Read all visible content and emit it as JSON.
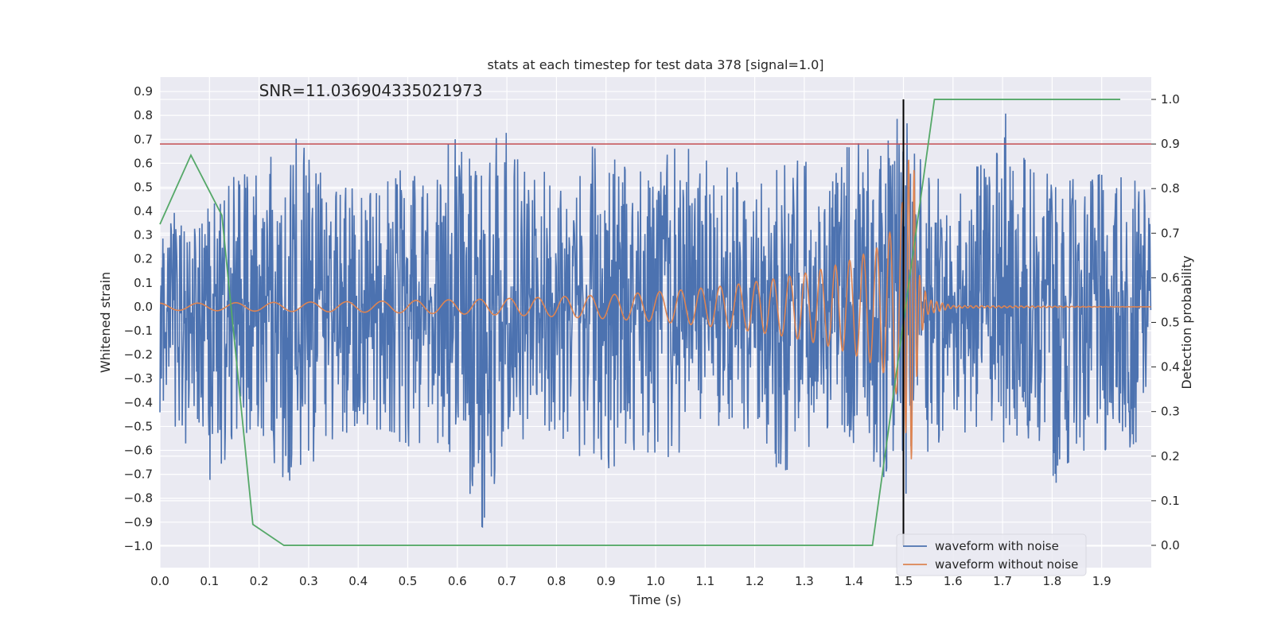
{
  "chart_data": {
    "type": "line",
    "title": "stats at each timestep for test data 378 [signal=1.0]",
    "annotation": "SNR=11.036904335021973",
    "xlabel": "Time (s)",
    "ylabel_left": "Whitened strain",
    "ylabel_right": "Detection probability",
    "xlim": [
      0.0,
      2.0
    ],
    "ylim_left": [
      -1.09,
      0.96
    ],
    "ylim_right": [
      -0.05,
      1.05
    ],
    "xticks": [
      "0.0",
      "0.1",
      "0.2",
      "0.3",
      "0.4",
      "0.5",
      "0.6",
      "0.7",
      "0.8",
      "0.9",
      "1.0",
      "1.1",
      "1.2",
      "1.3",
      "1.4",
      "1.5",
      "1.6",
      "1.7",
      "1.8",
      "1.9"
    ],
    "yticks_left": [
      "0.9",
      "0.8",
      "0.7",
      "0.6",
      "0.5",
      "0.4",
      "0.3",
      "0.2",
      "0.1",
      "0.0",
      "−0.1",
      "−0.2",
      "−0.3",
      "−0.4",
      "−0.5",
      "−0.6",
      "−0.7",
      "−0.8",
      "−0.9",
      "−1.0"
    ],
    "yticks_right": [
      "1.0",
      "0.9",
      "0.8",
      "0.7",
      "0.6",
      "0.5",
      "0.4",
      "0.3",
      "0.2",
      "0.1",
      "0.0"
    ],
    "grid": true,
    "legend_position": "lower-right",
    "colors": {
      "background": "#eaeaf2",
      "noise": "#4c72b0",
      "clean": "#dd8452",
      "probability": "#55a868",
      "threshold": "#c44e52",
      "event": "#000000"
    },
    "series": [
      {
        "name": "waveform with noise",
        "axis": "left",
        "style": "noise envelope (approx.)",
        "x": [
          0.0,
          0.05,
          0.1,
          0.15,
          0.2,
          0.25,
          0.3,
          0.35,
          0.4,
          0.45,
          0.5,
          0.55,
          0.6,
          0.65,
          0.7,
          0.75,
          0.8,
          0.85,
          0.9,
          0.95,
          1.0,
          1.05,
          1.1,
          1.15,
          1.2,
          1.25,
          1.3,
          1.35,
          1.4,
          1.45,
          1.5,
          1.55,
          1.6,
          1.65,
          1.7,
          1.75,
          1.8,
          1.85,
          1.9,
          1.95,
          2.0
        ],
        "ymax": [
          0.45,
          0.4,
          0.42,
          0.56,
          0.56,
          0.76,
          0.66,
          0.52,
          0.5,
          0.54,
          0.6,
          0.5,
          0.81,
          0.6,
          0.81,
          0.55,
          0.6,
          0.62,
          0.76,
          0.55,
          0.62,
          0.7,
          0.62,
          0.58,
          0.56,
          0.6,
          0.62,
          0.5,
          0.74,
          0.62,
          0.9,
          0.55,
          0.56,
          0.6,
          0.88,
          0.6,
          0.57,
          0.54,
          0.56,
          0.55,
          0.5
        ],
        "ymin": [
          -0.45,
          -0.58,
          -0.82,
          -0.55,
          -0.52,
          -0.76,
          -0.68,
          -0.56,
          -0.5,
          -0.54,
          -0.6,
          -0.56,
          -0.64,
          -0.93,
          -0.6,
          -0.55,
          -0.52,
          -0.66,
          -0.72,
          -0.6,
          -0.66,
          -0.62,
          -0.52,
          -0.55,
          -0.5,
          -0.73,
          -0.62,
          -0.5,
          -0.58,
          -0.68,
          -1.0,
          -0.6,
          -0.55,
          -0.5,
          -0.58,
          -0.54,
          -0.79,
          -0.6,
          -0.68,
          -0.6,
          -0.55
        ]
      },
      {
        "name": "waveform without noise",
        "axis": "left",
        "style": "chirp (approx.)",
        "x": [
          0.0,
          0.05,
          0.1,
          0.15,
          0.2,
          0.25,
          0.3,
          0.35,
          0.4,
          0.45,
          0.5,
          0.55,
          0.6,
          0.65,
          0.7,
          0.75,
          0.8,
          0.85,
          0.9,
          0.95,
          1.0,
          1.05,
          1.1,
          1.15,
          1.2,
          1.25,
          1.3,
          1.35,
          1.4,
          1.45,
          1.48,
          1.5,
          1.51,
          1.52,
          1.53,
          1.55,
          1.6,
          2.0
        ],
        "amplitude": [
          0.015,
          0.015,
          0.016,
          0.017,
          0.018,
          0.019,
          0.02,
          0.021,
          0.022,
          0.024,
          0.026,
          0.028,
          0.03,
          0.032,
          0.035,
          0.038,
          0.042,
          0.046,
          0.05,
          0.056,
          0.062,
          0.07,
          0.08,
          0.09,
          0.105,
          0.12,
          0.14,
          0.165,
          0.2,
          0.25,
          0.33,
          0.45,
          0.62,
          0.65,
          0.15,
          0.03,
          0.005,
          0.0
        ],
        "cycles_per_second_start": 13.0,
        "cycles_per_second_end": 40.0
      },
      {
        "name": "Detection probability",
        "axis": "right",
        "x": [
          0.0,
          0.0625,
          0.125,
          0.1875,
          0.25,
          1.4375,
          1.5625,
          1.9375
        ],
        "values": [
          0.72,
          0.875,
          0.74,
          0.047,
          0.0,
          0.0,
          1.0,
          1.0
        ]
      }
    ],
    "threshold_right": 0.9,
    "event_time": 1.5,
    "event_line_range_right": [
      0.0,
      1.0
    ]
  }
}
